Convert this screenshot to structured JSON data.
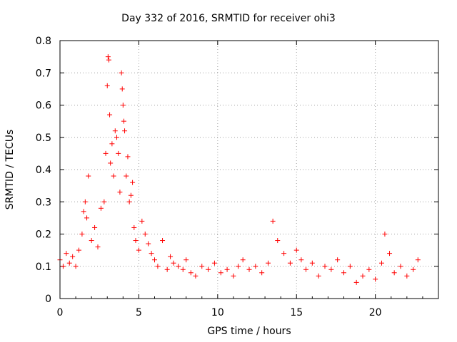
{
  "chart_data": {
    "type": "scatter",
    "title": "Day 332 of 2016, SRMTID for receiver ohi3",
    "xlabel": "GPS time / hours",
    "ylabel": "SRMTID / TECUs",
    "xlim": [
      0,
      24
    ],
    "ylim": [
      0,
      0.8
    ],
    "xticks": [
      0,
      5,
      10,
      15,
      20
    ],
    "xtick_labels": [
      "0",
      "5",
      "10",
      "15",
      "20"
    ],
    "yticks": [
      0,
      0.1,
      0.2,
      0.3,
      0.4,
      0.5,
      0.6,
      0.7,
      0.8
    ],
    "ytick_labels": [
      "0",
      "0.1",
      "0.2",
      "0.3",
      "0.4",
      "0.5",
      "0.6",
      "0.7",
      "0.8"
    ],
    "grid": true,
    "marker": "+",
    "marker_color": "#ff0000",
    "series": [
      {
        "name": "SRMTID",
        "x": [
          0.0,
          0.2,
          0.4,
          0.6,
          0.8,
          1.0,
          1.2,
          1.4,
          1.5,
          1.6,
          1.7,
          1.8,
          2.0,
          2.2,
          2.4,
          2.6,
          2.8,
          2.9,
          3.0,
          3.05,
          3.1,
          3.15,
          3.2,
          3.3,
          3.4,
          3.5,
          3.6,
          3.7,
          3.8,
          3.9,
          3.95,
          4.0,
          4.05,
          4.1,
          4.2,
          4.3,
          4.4,
          4.5,
          4.6,
          4.7,
          4.8,
          5.0,
          5.2,
          5.4,
          5.6,
          5.8,
          6.0,
          6.2,
          6.5,
          6.8,
          7.0,
          7.2,
          7.5,
          7.8,
          8.0,
          8.3,
          8.6,
          9.0,
          9.4,
          9.8,
          10.2,
          10.6,
          11.0,
          11.3,
          11.6,
          12.0,
          12.4,
          12.8,
          13.2,
          13.5,
          13.8,
          14.2,
          14.6,
          15.0,
          15.3,
          15.6,
          16.0,
          16.4,
          16.8,
          17.2,
          17.6,
          18.0,
          18.4,
          18.8,
          19.2,
          19.6,
          20.0,
          20.4,
          20.6,
          20.9,
          21.2,
          21.6,
          22.0,
          22.4,
          22.7
        ],
        "y": [
          0.12,
          0.1,
          0.14,
          0.11,
          0.13,
          0.1,
          0.15,
          0.2,
          0.27,
          0.3,
          0.25,
          0.38,
          0.18,
          0.22,
          0.16,
          0.28,
          0.3,
          0.45,
          0.66,
          0.75,
          0.74,
          0.57,
          0.42,
          0.48,
          0.38,
          0.52,
          0.5,
          0.45,
          0.33,
          0.7,
          0.65,
          0.6,
          0.55,
          0.52,
          0.38,
          0.44,
          0.3,
          0.32,
          0.36,
          0.22,
          0.18,
          0.15,
          0.24,
          0.2,
          0.17,
          0.14,
          0.12,
          0.1,
          0.18,
          0.09,
          0.13,
          0.11,
          0.1,
          0.09,
          0.12,
          0.08,
          0.07,
          0.1,
          0.09,
          0.11,
          0.08,
          0.09,
          0.07,
          0.1,
          0.12,
          0.09,
          0.1,
          0.08,
          0.11,
          0.24,
          0.18,
          0.14,
          0.11,
          0.15,
          0.12,
          0.09,
          0.11,
          0.07,
          0.1,
          0.09,
          0.12,
          0.08,
          0.1,
          0.05,
          0.07,
          0.09,
          0.06,
          0.11,
          0.2,
          0.14,
          0.08,
          0.1,
          0.07,
          0.09,
          0.12
        ]
      }
    ]
  }
}
